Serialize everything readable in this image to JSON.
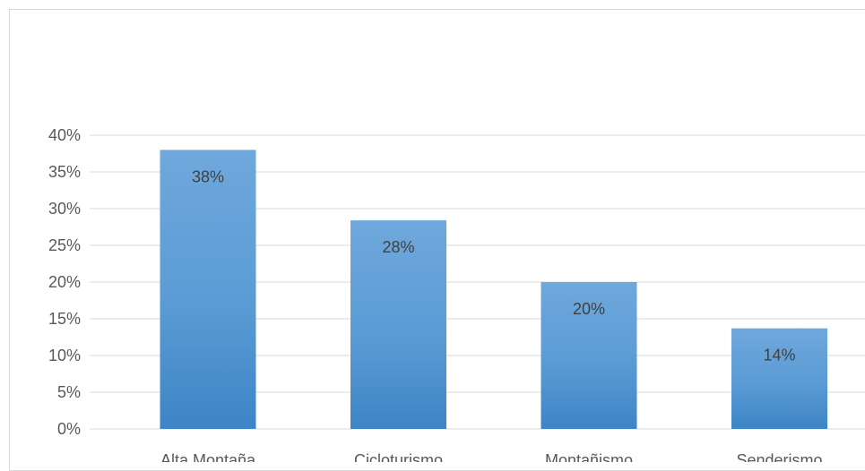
{
  "chart_data": {
    "type": "bar",
    "title": "",
    "xlabel": "",
    "ylabel": "",
    "categories": [
      "Alta Montaña",
      "Cicloturismo",
      "Montañismo",
      "Senderismo"
    ],
    "values": [
      0.38,
      0.284,
      0.2,
      0.137
    ],
    "data_labels": [
      "38%",
      "28%",
      "20%",
      "14%"
    ],
    "ylim": [
      0,
      0.4
    ],
    "yticks": [
      0,
      0.05,
      0.1,
      0.15,
      0.2,
      0.25,
      0.3,
      0.35,
      0.4
    ],
    "ytick_labels": [
      "0%",
      "5%",
      "10%",
      "15%",
      "20%",
      "25%",
      "30%",
      "35%",
      "40%"
    ],
    "grid": true,
    "legend": "none",
    "colors": {
      "bar_top": "#6fa8dc",
      "bar_mid": "#5b9bd5",
      "bar_bottom": "#3d85c6",
      "grid": "#d9d9d9",
      "axis_text": "#595959",
      "data_label_text": "#404040"
    }
  }
}
